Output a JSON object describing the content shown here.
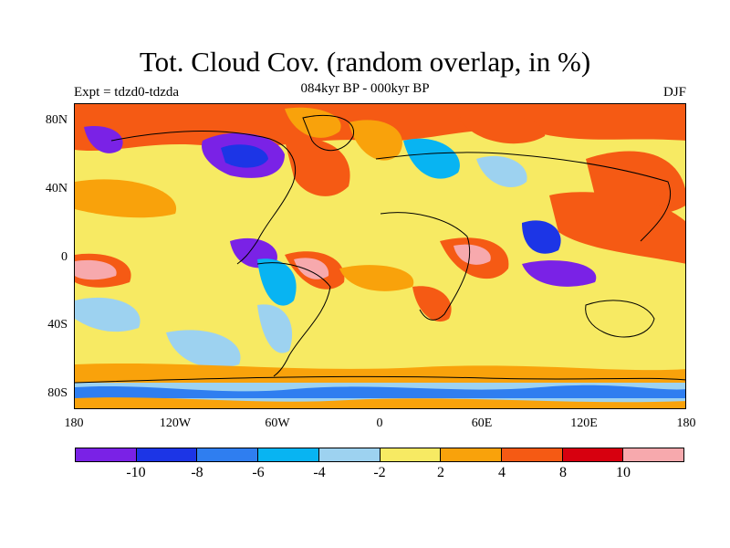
{
  "title": "Tot. Cloud Cov. (random overlap, in %)",
  "subtitle": "084kyr BP - 000kyr BP",
  "experiment": "Expt = tdzd0-tdzda",
  "season": "DJF",
  "map": {
    "latitude_labels": [
      "80N",
      "40N",
      "0",
      "40S",
      "80S"
    ],
    "longitude_labels": [
      "180",
      "120W",
      "60W",
      "0",
      "60E",
      "120E",
      "180"
    ],
    "contour_levels": [
      -10,
      -8,
      -6,
      -4,
      -2,
      2,
      4,
      8,
      10
    ],
    "background_color": "#f7ea63"
  },
  "colorbar": {
    "colors": [
      "#7a22e6",
      "#1c35e6",
      "#2f7ef0",
      "#08b4f2",
      "#9dd2f0",
      "#f7ea63",
      "#f9a20b",
      "#f55a14",
      "#d7000f",
      "#f7a9ad"
    ],
    "labels": [
      "-10",
      "-8",
      "-6",
      "-4",
      "-2",
      "2",
      "4",
      "8",
      "10"
    ]
  }
}
